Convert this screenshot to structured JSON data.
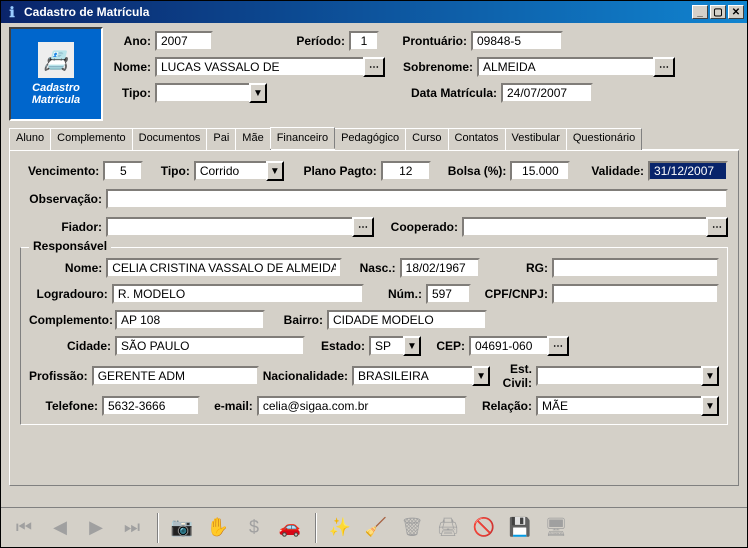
{
  "window": {
    "title": "Cadastro de Matrícula"
  },
  "logo": {
    "line1": "Cadastro",
    "line2": "Matrícula",
    "icon": "📇"
  },
  "header": {
    "ano_lbl": "Ano:",
    "ano": "2007",
    "periodo_lbl": "Período:",
    "periodo": "1",
    "prontuario_lbl": "Prontuário:",
    "prontuario": "09848-5",
    "nome_lbl": "Nome:",
    "nome": "LUCAS VASSALO DE",
    "sobrenome_lbl": "Sobrenome:",
    "sobrenome": "ALMEIDA",
    "tipo_lbl": "Tipo:",
    "tipo": "",
    "datamat_lbl": "Data Matrícula:",
    "datamat": "24/07/2007"
  },
  "tabs": [
    "Aluno",
    "Complemento",
    "Documentos",
    "Pai",
    "Mãe",
    "Financeiro",
    "Pedagógico",
    "Curso",
    "Contatos",
    "Vestibular",
    "Questionário"
  ],
  "active_tab": "Financeiro",
  "fin": {
    "venc_lbl": "Vencimento:",
    "venc": "5",
    "tipo_lbl": "Tipo:",
    "tipo": "Corrido",
    "plano_lbl": "Plano Pagto:",
    "plano": "12",
    "bolsa_lbl": "Bolsa (%):",
    "bolsa": "15.000",
    "validade_lbl": "Validade:",
    "validade": "31/12/2007",
    "obs_lbl": "Observação:",
    "obs": "",
    "fiador_lbl": "Fiador:",
    "fiador": "",
    "coop_lbl": "Cooperado:",
    "coop": ""
  },
  "resp": {
    "legend": "Responsável",
    "nome_lbl": "Nome:",
    "nome": "CELIA CRISTINA VASSALO DE ALMEIDA",
    "nasc_lbl": "Nasc.:",
    "nasc": "18/02/1967",
    "rg_lbl": "RG:",
    "rg": "",
    "log_lbl": "Logradouro:",
    "log": "R. MODELO",
    "num_lbl": "Núm.:",
    "num": "597",
    "cpf_lbl": "CPF/CNPJ:",
    "cpf": "",
    "compl_lbl": "Complemento:",
    "compl": "AP 108",
    "bairro_lbl": "Bairro:",
    "bairro": "CIDADE MODELO",
    "cidade_lbl": "Cidade:",
    "cidade": "SÃO PAULO",
    "estado_lbl": "Estado:",
    "estado": "SP",
    "cep_lbl": "CEP:",
    "cep": "04691-060",
    "prof_lbl": "Profissão:",
    "prof": "GERENTE ADM",
    "nac_lbl": "Nacionalidade:",
    "nac": "BRASILEIRA",
    "estcivil_lbl": "Est. Civil:",
    "estcivil": "",
    "tel_lbl": "Telefone:",
    "tel": "5632-3666",
    "email_lbl": "e-mail:",
    "email": "celia@sigaa.com.br",
    "relacao_lbl": "Relação:",
    "relacao": "MÃE"
  },
  "toolbar_icons": {
    "first": "⏮",
    "prev": "◀",
    "next": "▶",
    "last": "⏭",
    "camera": "📷",
    "hand": "✋",
    "money": "$",
    "car": "🚗",
    "spark": "✨",
    "sweep": "🧹",
    "trash": "🗑",
    "print": "🖨",
    "forbid": "🚫",
    "save": "💾",
    "pc": "🖥"
  }
}
